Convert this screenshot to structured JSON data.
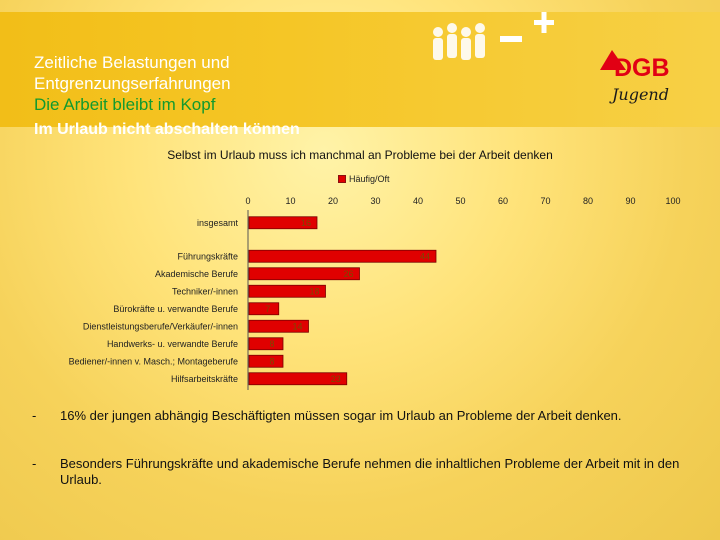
{
  "title": {
    "line1": "Zeitliche Belastungen und",
    "line2": "Entgrenzungserfahrungen",
    "green": "Die Arbeit bleibt im Kopf",
    "subtitle": "Im Urlaub nicht abschalten können"
  },
  "logo": {
    "text": "DGB",
    "script": "Jugend"
  },
  "chart_data": {
    "type": "bar",
    "orientation": "horizontal",
    "title": "Selbst im Urlaub muss ich manchmal an Probleme bei der Arbeit denken",
    "legend": [
      "Häufig/Oft"
    ],
    "xlim": [
      0,
      100
    ],
    "xticks": [
      "0",
      "10",
      "20",
      "30",
      "40",
      "50",
      "60",
      "70",
      "80",
      "90",
      "100"
    ],
    "categories": [
      "insgesamt",
      "Führungskräfte",
      "Akademische Berufe",
      "Techniker/-innen",
      "Bürokräfte u. verwandte Berufe",
      "Dienstleistungsberufe/Verkäufer/-innen",
      "Handwerks- u. verwandte Berufe",
      "Bediener/-innen v. Masch.; Montageberufe",
      "Hilfsarbeitskräfte"
    ],
    "values": [
      16,
      44,
      26,
      18,
      7,
      14,
      8,
      8,
      23
    ],
    "colors": {
      "bar": "#e00000",
      "edge": "#7a0000",
      "label": "#7a4a00"
    }
  },
  "bullets": [
    {
      "dash": "-",
      "text": "16% der jungen abhängig Beschäftigten müssen sogar im Urlaub an Probleme der Arbeit denken."
    },
    {
      "dash": "-",
      "text": "Besonders Führungskräfte und akademische Berufe nehmen die inhaltlichen Probleme der Arbeit mit in den Urlaub."
    }
  ],
  "colors": {
    "header": "#f4c421",
    "green": "#129a2e",
    "red": "#e10014"
  }
}
